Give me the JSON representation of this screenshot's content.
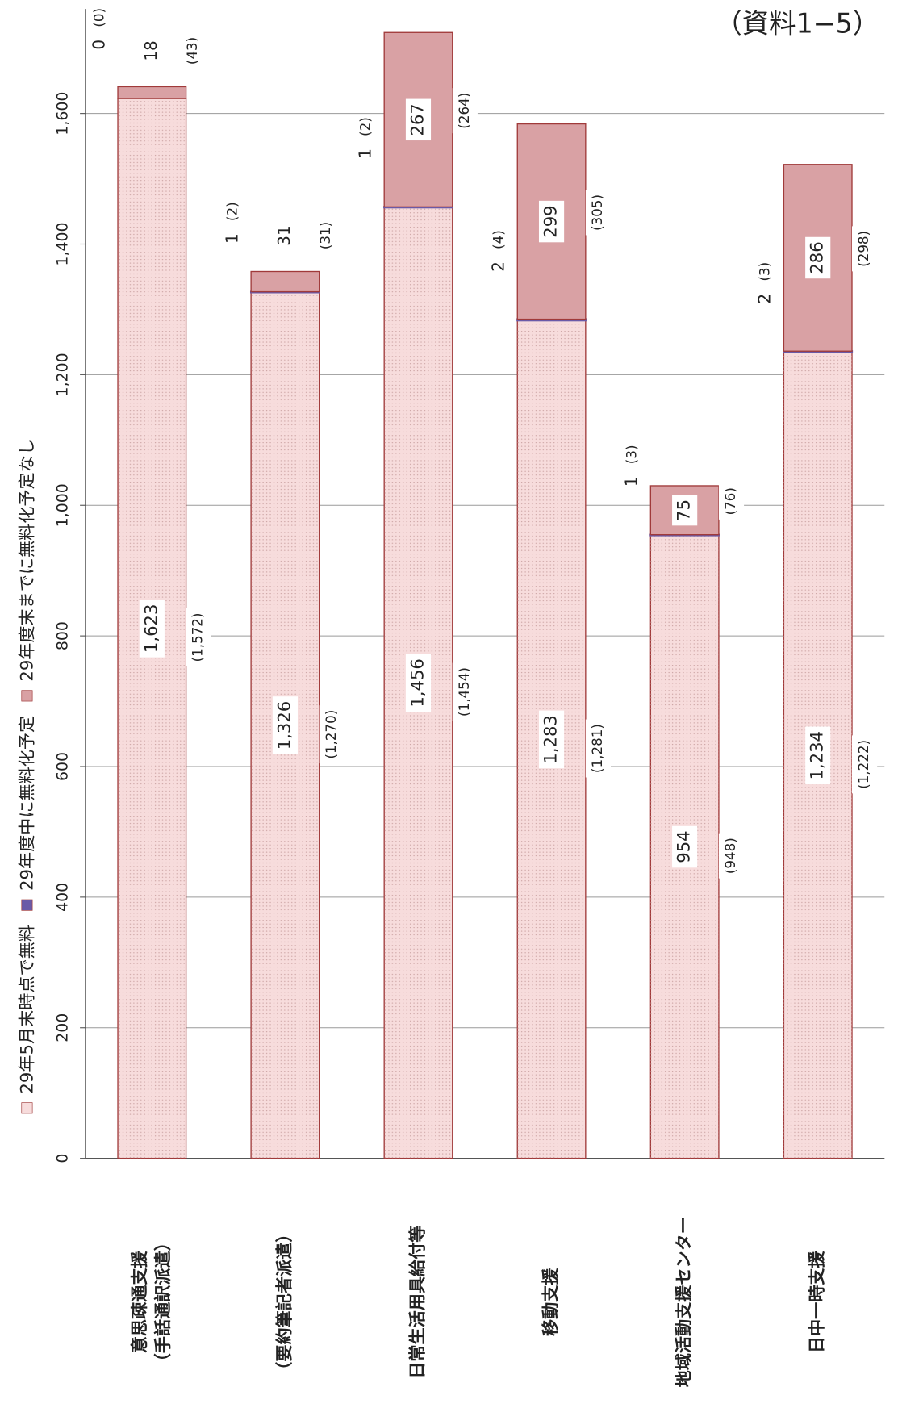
{
  "chart_data": {
    "type": "stacked_bar",
    "title": "（資料1−5）",
    "categories": [
      [
        "意思疎通支援",
        "（手話通訳派遣）"
      ],
      [
        "（要約筆記者派遣）"
      ],
      [
        "日常生活用具給付等"
      ],
      [
        "移動支援"
      ],
      [
        "地域活動支援センター"
      ],
      [
        "日中一時支援"
      ]
    ],
    "series": [
      {
        "name": "29年5月末時点で無料",
        "color": "#f7dcdc",
        "values": [
          1623,
          1326,
          1456,
          1283,
          954,
          1234
        ],
        "value_labels": [
          "1,623",
          "1,326",
          "1,456",
          "1,283",
          "954",
          "1,234"
        ],
        "prev_labels": [
          "(1,572)",
          "(1,270)",
          "(1,454)",
          "(1,281)",
          "(948)",
          "(1,222)"
        ]
      },
      {
        "name": "29年度中に無料化予定",
        "color": "#6a5aa8",
        "values": [
          0,
          1,
          1,
          2,
          1,
          2
        ],
        "prev_labels": [
          "(0)",
          "(2)",
          "(2)",
          "(4)",
          "(3)",
          "(3)"
        ]
      },
      {
        "name": "29年度末までに無料化予定なし",
        "color": "#d9a1a4",
        "values": [
          18,
          31,
          267,
          299,
          75,
          286
        ],
        "prev_labels": [
          "(43)",
          "(31)",
          "(264)",
          "(305)",
          "(76)",
          "(298)"
        ]
      }
    ],
    "ylim": [
      0,
      1760
    ],
    "yticks": [
      0,
      200,
      400,
      600,
      800,
      {
        "value": 1000,
        "label": "1,000"
      },
      {
        "value": 1200,
        "label": "1,200"
      },
      {
        "value": 1400,
        "label": "1,400"
      },
      {
        "value": 1600,
        "label": "1,600"
      }
    ],
    "grid": true
  }
}
